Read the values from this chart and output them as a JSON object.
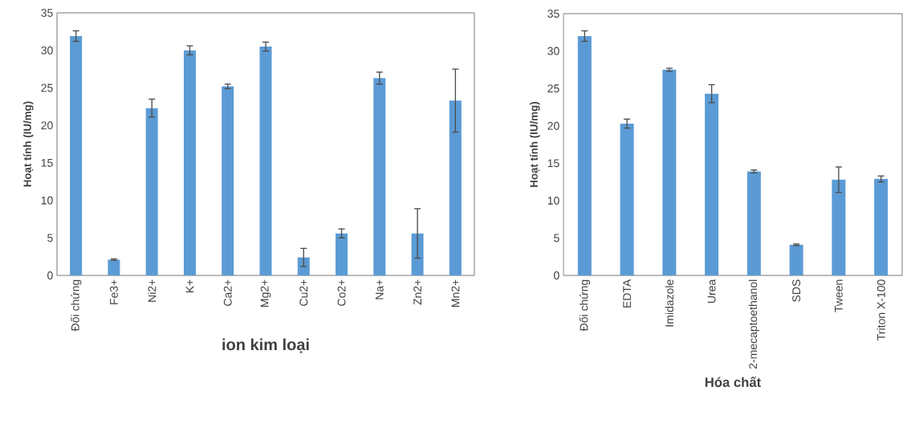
{
  "chart_data": [
    {
      "type": "bar",
      "xlabel": "ion kim loại",
      "ylabel": "Hoạt tính (IU/mg)",
      "categories": [
        "Đối chứng",
        "Fe3+",
        "Ni2+",
        "K+",
        "Ca2+",
        "Mg2+",
        "Cu2+",
        "Co2+",
        "Na+",
        "Zn2+",
        "Mn2+"
      ],
      "values": [
        31.9,
        2.1,
        22.3,
        30.0,
        25.2,
        30.5,
        2.4,
        5.6,
        26.3,
        5.6,
        23.3
      ],
      "errors": [
        0.7,
        0.1,
        1.2,
        0.6,
        0.3,
        0.6,
        1.2,
        0.6,
        0.8,
        3.3,
        4.2
      ],
      "color": "#5b9bd5",
      "ylim": [
        0,
        35
      ],
      "yticks": [
        0,
        5,
        10,
        15,
        20,
        25,
        30,
        35
      ]
    },
    {
      "type": "bar",
      "xlabel": "Hóa chất",
      "ylabel": "Hoạt tính (IU/mg)",
      "categories": [
        "Đối chứng",
        "EDTA",
        "Imidazole",
        "Urea",
        "2-mecaptoethanol",
        "SDS",
        "Tween",
        "Triton X-100"
      ],
      "values": [
        32.0,
        20.3,
        27.5,
        24.3,
        13.9,
        4.1,
        12.8,
        12.9
      ],
      "errors": [
        0.7,
        0.6,
        0.2,
        1.2,
        0.2,
        0.1,
        1.7,
        0.4
      ],
      "color": "#5b9bd5",
      "ylim": [
        0,
        35
      ],
      "yticks": [
        0,
        5,
        10,
        15,
        20,
        25,
        30,
        35
      ]
    }
  ]
}
